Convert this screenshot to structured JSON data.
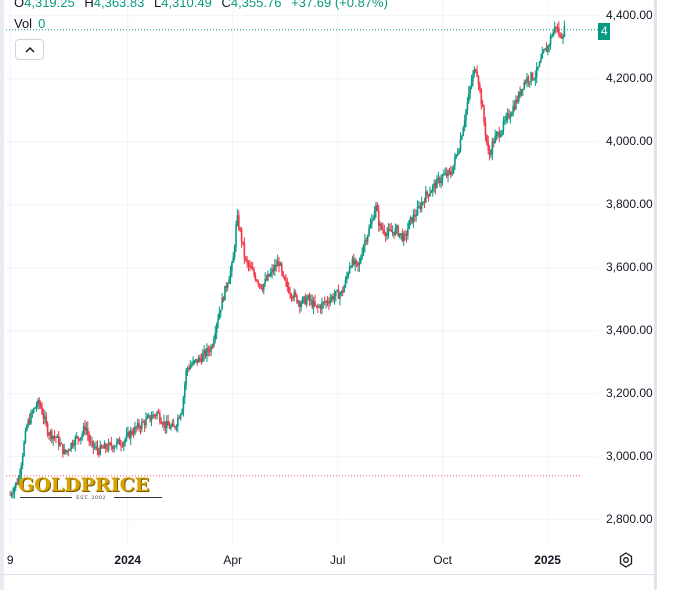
{
  "legend": {
    "open_label": "O",
    "open_value": "4,319.25",
    "high_label": "H",
    "high_value": "4,363.83",
    "low_label": "L",
    "low_value": "4,310.49",
    "close_label": "C",
    "close_value": "4,355.76",
    "change": "+37.69 (+0.87%)",
    "vol_label": "Vol",
    "vol_value": "0"
  },
  "price_tag": "4",
  "logo": {
    "name": "GOLDPRICE",
    "sub": "EST. 2002"
  },
  "colors": {
    "up": "#089981",
    "down": "#f23645",
    "grid": "#f0f3fa",
    "accent": "#089981"
  },
  "icons": {
    "collapse": "chevron-up-icon",
    "settings": "gear-icon"
  },
  "chart_data": {
    "type": "candlestick",
    "title": "",
    "y_ticks": [
      "4,400.00",
      "4,200.00",
      "4,000.00",
      "3,800.00",
      "3,600.00",
      "3,400.00",
      "3,200.00",
      "3,000.00",
      "2,800.00"
    ],
    "y_tick_values": [
      4400,
      4200,
      4000,
      3800,
      3600,
      3400,
      3200,
      3000,
      2800
    ],
    "ylim": [
      2720,
      4450
    ],
    "x_ticks": [
      {
        "label": "9",
        "t": 0,
        "bold": false
      },
      {
        "label": "2024",
        "t": 28,
        "bold": true
      },
      {
        "label": "Apr",
        "t": 53,
        "bold": false
      },
      {
        "label": "Jul",
        "t": 78,
        "bold": false
      },
      {
        "label": "Oct",
        "t": 103,
        "bold": false
      },
      {
        "label": "2025",
        "t": 128,
        "bold": true
      }
    ],
    "xlim": [
      -1,
      140
    ],
    "last_close": 4355.76,
    "reference_level": 2940,
    "price_path": [
      [
        0,
        2880
      ],
      [
        2,
        2930
      ],
      [
        4,
        3100
      ],
      [
        6,
        3160
      ],
      [
        7,
        3170
      ],
      [
        9,
        3080
      ],
      [
        11,
        3060
      ],
      [
        13,
        3010
      ],
      [
        15,
        3050
      ],
      [
        17,
        3070
      ],
      [
        18,
        3100
      ],
      [
        19,
        3040
      ],
      [
        21,
        3020
      ],
      [
        23,
        3030
      ],
      [
        25,
        3040
      ],
      [
        27,
        3050
      ],
      [
        29,
        3080
      ],
      [
        31,
        3100
      ],
      [
        33,
        3120
      ],
      [
        35,
        3140
      ],
      [
        37,
        3100
      ],
      [
        39,
        3090
      ],
      [
        41,
        3160
      ],
      [
        42,
        3280
      ],
      [
        44,
        3300
      ],
      [
        46,
        3320
      ],
      [
        48,
        3350
      ],
      [
        49,
        3420
      ],
      [
        50,
        3470
      ],
      [
        52,
        3570
      ],
      [
        53,
        3610
      ],
      [
        54,
        3760
      ],
      [
        55,
        3700
      ],
      [
        56,
        3620
      ],
      [
        58,
        3580
      ],
      [
        60,
        3540
      ],
      [
        62,
        3580
      ],
      [
        64,
        3620
      ],
      [
        65,
        3560
      ],
      [
        67,
        3520
      ],
      [
        69,
        3490
      ],
      [
        71,
        3500
      ],
      [
        73,
        3470
      ],
      [
        75,
        3490
      ],
      [
        77,
        3510
      ],
      [
        79,
        3520
      ],
      [
        80,
        3560
      ],
      [
        81,
        3620
      ],
      [
        83,
        3600
      ],
      [
        84,
        3670
      ],
      [
        86,
        3740
      ],
      [
        87,
        3800
      ],
      [
        88,
        3730
      ],
      [
        90,
        3710
      ],
      [
        92,
        3720
      ],
      [
        94,
        3690
      ],
      [
        95,
        3740
      ],
      [
        97,
        3780
      ],
      [
        99,
        3830
      ],
      [
        101,
        3860
      ],
      [
        103,
        3890
      ],
      [
        105,
        3900
      ],
      [
        107,
        3990
      ],
      [
        108,
        4060
      ],
      [
        109,
        4130
      ],
      [
        110,
        4200
      ],
      [
        111,
        4240
      ],
      [
        112,
        4150
      ],
      [
        113,
        4050
      ],
      [
        114,
        3950
      ],
      [
        115,
        4000
      ],
      [
        117,
        4040
      ],
      [
        119,
        4090
      ],
      [
        121,
        4140
      ],
      [
        122,
        4180
      ],
      [
        123,
        4200
      ],
      [
        125,
        4210
      ],
      [
        126,
        4240
      ],
      [
        127,
        4280
      ],
      [
        128,
        4300
      ],
      [
        129,
        4340
      ],
      [
        130,
        4370
      ],
      [
        131,
        4330
      ],
      [
        132,
        4356
      ]
    ]
  }
}
